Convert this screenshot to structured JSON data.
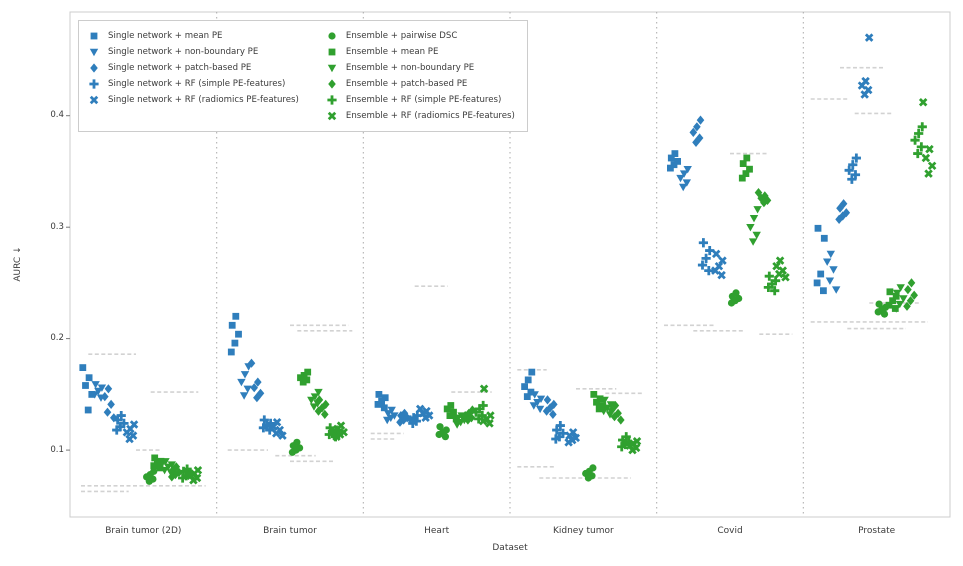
{
  "chart_data": {
    "type": "scatter",
    "title": "",
    "xlabel": "Dataset",
    "ylabel": "AURC ↓",
    "ylim": [
      0.04,
      0.493
    ],
    "yticks": [
      0.1,
      0.2,
      0.3,
      0.4
    ],
    "ytick_labels": [
      "0.1",
      "0.2",
      "0.3",
      "0.4"
    ],
    "grid": "off",
    "legend_position": "upper-left",
    "separator_style": "dotted",
    "colors": {
      "single_network": "#2f7ebc",
      "ensemble": "#30a02f",
      "reference": "#d2d2d2",
      "frame": "#cccccc",
      "separator": "#aaaaaa"
    },
    "categories": [
      "Brain tumor (2D)",
      "Brain tumor",
      "Heart",
      "Kidney tumor",
      "Covid",
      "Prostate"
    ],
    "series": [
      {
        "name": "Single network + mean PE",
        "marker": "square",
        "icon": "square-icon",
        "color": "#2f7ebc",
        "values": [
          [
            0.174,
            0.165,
            0.158,
            0.15,
            0.136
          ],
          [
            0.22,
            0.212,
            0.204,
            0.196,
            0.188
          ],
          [
            0.15,
            0.147,
            0.144,
            0.141,
            0.138
          ],
          [
            0.17,
            0.163,
            0.157,
            0.152,
            0.148
          ],
          [
            0.366,
            0.362,
            0.359,
            0.356,
            0.353
          ],
          [
            0.299,
            0.29,
            0.258,
            0.25,
            0.243
          ]
        ]
      },
      {
        "name": "Single network + non-boundary PE",
        "marker": "triangle-down",
        "icon": "triangle-down-icon",
        "color": "#2f7ebc",
        "values": [
          [
            0.159,
            0.156,
            0.153,
            0.15,
            0.147
          ],
          [
            0.175,
            0.168,
            0.161,
            0.155,
            0.149
          ],
          [
            0.136,
            0.133,
            0.131,
            0.129,
            0.127
          ],
          [
            0.15,
            0.146,
            0.143,
            0.14,
            0.137
          ],
          [
            0.352,
            0.348,
            0.344,
            0.34,
            0.336
          ],
          [
            0.276,
            0.269,
            0.262,
            0.252,
            0.244
          ]
        ]
      },
      {
        "name": "Single network + patch-based PE",
        "marker": "diamond",
        "icon": "diamond-icon",
        "color": "#2f7ebc",
        "values": [
          [
            0.155,
            0.148,
            0.141,
            0.134,
            0.129
          ],
          [
            0.178,
            0.161,
            0.156,
            0.151,
            0.147
          ],
          [
            0.133,
            0.131,
            0.129,
            0.127,
            0.125
          ],
          [
            0.145,
            0.141,
            0.138,
            0.135,
            0.132
          ],
          [
            0.396,
            0.39,
            0.385,
            0.38,
            0.376
          ],
          [
            0.321,
            0.317,
            0.313,
            0.31,
            0.307
          ]
        ]
      },
      {
        "name": "Single network + RF (simple PE-features)",
        "marker": "plus",
        "icon": "plus-icon",
        "color": "#2f7ebc",
        "values": [
          [
            0.131,
            0.127,
            0.124,
            0.121,
            0.118
          ],
          [
            0.127,
            0.124,
            0.122,
            0.12,
            0.118
          ],
          [
            0.131,
            0.129,
            0.127,
            0.126,
            0.124
          ],
          [
            0.122,
            0.118,
            0.115,
            0.112,
            0.11
          ],
          [
            0.286,
            0.279,
            0.272,
            0.266,
            0.261
          ],
          [
            0.362,
            0.356,
            0.351,
            0.347,
            0.343
          ]
        ]
      },
      {
        "name": "Single network + RF (radiomics PE-features)",
        "marker": "x",
        "icon": "x-icon",
        "color": "#2f7ebc",
        "values": [
          [
            0.123,
            0.119,
            0.116,
            0.113,
            0.11
          ],
          [
            0.125,
            0.121,
            0.118,
            0.115,
            0.113
          ],
          [
            0.137,
            0.135,
            0.133,
            0.131,
            0.129
          ],
          [
            0.116,
            0.113,
            0.111,
            0.109,
            0.107
          ],
          [
            0.276,
            0.27,
            0.265,
            0.261,
            0.257
          ],
          [
            0.47,
            0.431,
            0.427,
            0.423,
            0.419
          ]
        ]
      },
      {
        "name": "Ensemble + pairwise DSC",
        "marker": "circle",
        "icon": "circle-icon",
        "color": "#30a02f",
        "values": [
          [
            0.081,
            0.078,
            0.076,
            0.074,
            0.072
          ],
          [
            0.107,
            0.104,
            0.102,
            0.1,
            0.098
          ],
          [
            0.121,
            0.118,
            0.116,
            0.114,
            0.112
          ],
          [
            0.084,
            0.081,
            0.079,
            0.077,
            0.075
          ],
          [
            0.241,
            0.238,
            0.236,
            0.234,
            0.232
          ],
          [
            0.231,
            0.228,
            0.226,
            0.224,
            0.222
          ]
        ]
      },
      {
        "name": "Ensemble + mean PE",
        "marker": "square",
        "icon": "square-icon",
        "color": "#30a02f",
        "values": [
          [
            0.093,
            0.09,
            0.088,
            0.086,
            0.084
          ],
          [
            0.17,
            0.167,
            0.165,
            0.163,
            0.161
          ],
          [
            0.14,
            0.137,
            0.134,
            0.131,
            0.128
          ],
          [
            0.15,
            0.146,
            0.143,
            0.14,
            0.137
          ],
          [
            0.362,
            0.357,
            0.352,
            0.348,
            0.344
          ],
          [
            0.242,
            0.238,
            0.234,
            0.23,
            0.227
          ]
        ]
      },
      {
        "name": "Ensemble + non-boundary PE",
        "marker": "triangle-down",
        "icon": "triangle-down-icon",
        "color": "#30a02f",
        "values": [
          [
            0.09,
            0.087,
            0.085,
            0.082,
            0.08
          ],
          [
            0.152,
            0.148,
            0.145,
            0.142,
            0.139
          ],
          [
            0.131,
            0.129,
            0.127,
            0.125,
            0.123
          ],
          [
            0.145,
            0.141,
            0.138,
            0.135,
            0.132
          ],
          [
            0.316,
            0.308,
            0.3,
            0.293,
            0.287
          ],
          [
            0.246,
            0.241,
            0.236,
            0.231,
            0.227
          ]
        ]
      },
      {
        "name": "Ensemble + patch-based PE",
        "marker": "diamond",
        "icon": "diamond-icon",
        "color": "#30a02f",
        "values": [
          [
            0.085,
            0.082,
            0.08,
            0.078,
            0.076
          ],
          [
            0.145,
            0.141,
            0.138,
            0.135,
            0.132
          ],
          [
            0.136,
            0.133,
            0.131,
            0.129,
            0.127
          ],
          [
            0.14,
            0.136,
            0.133,
            0.13,
            0.127
          ],
          [
            0.331,
            0.328,
            0.326,
            0.324,
            0.322
          ],
          [
            0.25,
            0.244,
            0.239,
            0.234,
            0.229
          ]
        ]
      },
      {
        "name": "Ensemble + RF (simple PE-features)",
        "marker": "plus",
        "icon": "plus-icon",
        "color": "#30a02f",
        "values": [
          [
            0.083,
            0.081,
            0.079,
            0.077,
            0.075
          ],
          [
            0.12,
            0.118,
            0.116,
            0.114,
            0.112
          ],
          [
            0.14,
            0.137,
            0.134,
            0.131,
            0.128
          ],
          [
            0.112,
            0.109,
            0.107,
            0.105,
            0.103
          ],
          [
            0.256,
            0.252,
            0.249,
            0.246,
            0.243
          ],
          [
            0.39,
            0.384,
            0.378,
            0.372,
            0.366
          ]
        ]
      },
      {
        "name": "Ensemble + RF (radiomics PE-features)",
        "marker": "x",
        "icon": "x-icon",
        "color": "#30a02f",
        "values": [
          [
            0.082,
            0.079,
            0.077,
            0.075,
            0.073
          ],
          [
            0.122,
            0.119,
            0.116,
            0.114,
            0.112
          ],
          [
            0.155,
            0.131,
            0.128,
            0.126,
            0.124
          ],
          [
            0.108,
            0.106,
            0.104,
            0.102,
            0.1
          ],
          [
            0.27,
            0.265,
            0.261,
            0.258,
            0.255
          ],
          [
            0.412,
            0.37,
            0.362,
            0.355,
            0.348
          ]
        ]
      }
    ],
    "reference_marks": {
      "name": "reference-dash-rows",
      "color": "#d2d2d2",
      "per_category": [
        [
          [
            0.186,
            -0.75,
            -0.1
          ],
          [
            0.152,
            0.1,
            0.75
          ],
          [
            0.1,
            -0.1,
            0.25
          ],
          [
            0.068,
            -0.85,
            0.85
          ],
          [
            0.063,
            -0.85,
            -0.2
          ]
        ],
        [
          [
            0.212,
            0.0,
            0.8
          ],
          [
            0.207,
            0.1,
            0.85
          ],
          [
            0.1,
            -0.85,
            -0.3
          ],
          [
            0.095,
            -0.2,
            0.35
          ],
          [
            0.09,
            0.0,
            0.6
          ]
        ],
        [
          [
            0.247,
            -0.3,
            0.15
          ],
          [
            0.152,
            0.2,
            0.75
          ],
          [
            0.115,
            -0.9,
            -0.45
          ],
          [
            0.11,
            -0.9,
            -0.55
          ]
        ],
        [
          [
            0.172,
            -0.9,
            -0.5
          ],
          [
            0.155,
            -0.1,
            0.45
          ],
          [
            0.151,
            0.3,
            0.8
          ],
          [
            0.085,
            -0.9,
            -0.4
          ],
          [
            0.075,
            -0.6,
            0.65
          ]
        ],
        [
          [
            0.366,
            0.0,
            0.5
          ],
          [
            0.212,
            -0.9,
            -0.2
          ],
          [
            0.207,
            -0.5,
            0.2
          ],
          [
            0.204,
            0.4,
            0.85
          ]
        ],
        [
          [
            0.443,
            -0.5,
            0.1
          ],
          [
            0.415,
            -0.9,
            -0.4
          ],
          [
            0.402,
            -0.3,
            0.2
          ],
          [
            0.232,
            -0.1,
            0.6
          ],
          [
            0.215,
            -0.9,
            0.7
          ],
          [
            0.209,
            -0.4,
            0.4
          ]
        ]
      ]
    }
  }
}
